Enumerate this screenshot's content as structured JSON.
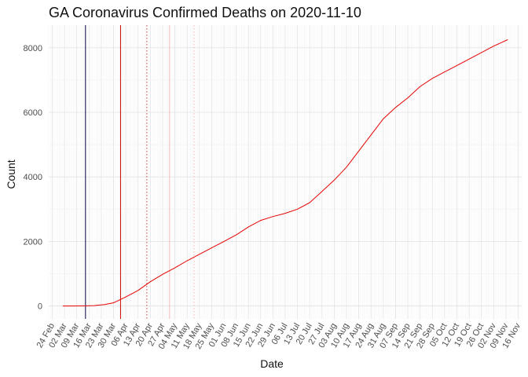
{
  "chart_data": {
    "type": "line",
    "title": "GA Coronavirus Confirmed Deaths on 2020-11-10",
    "xlabel": "Date",
    "ylabel": "Count",
    "xlim": [
      "2020-02-22",
      "2020-11-18"
    ],
    "ylim": [
      -400,
      8700
    ],
    "y_ticks": [
      0,
      2000,
      4000,
      6000,
      8000
    ],
    "x_ticks": [
      {
        "date": "2020-02-24",
        "label": "24 Feb"
      },
      {
        "date": "2020-03-02",
        "label": "02 Mar"
      },
      {
        "date": "2020-03-09",
        "label": "09 Mar"
      },
      {
        "date": "2020-03-16",
        "label": "16 Mar"
      },
      {
        "date": "2020-03-23",
        "label": "23 Mar"
      },
      {
        "date": "2020-03-30",
        "label": "30 Mar"
      },
      {
        "date": "2020-04-06",
        "label": "06 Apr"
      },
      {
        "date": "2020-04-13",
        "label": "13 Apr"
      },
      {
        "date": "2020-04-20",
        "label": "20 Apr"
      },
      {
        "date": "2020-04-27",
        "label": "27 Apr"
      },
      {
        "date": "2020-05-04",
        "label": "04 May"
      },
      {
        "date": "2020-05-11",
        "label": "11 May"
      },
      {
        "date": "2020-05-18",
        "label": "18 May"
      },
      {
        "date": "2020-05-25",
        "label": "25 May"
      },
      {
        "date": "2020-06-01",
        "label": "01 Jun"
      },
      {
        "date": "2020-06-08",
        "label": "08 Jun"
      },
      {
        "date": "2020-06-15",
        "label": "15 Jun"
      },
      {
        "date": "2020-06-22",
        "label": "22 Jun"
      },
      {
        "date": "2020-06-29",
        "label": "29 Jun"
      },
      {
        "date": "2020-07-06",
        "label": "06 Jul"
      },
      {
        "date": "2020-07-13",
        "label": "13 Jul"
      },
      {
        "date": "2020-07-20",
        "label": "20 Jul"
      },
      {
        "date": "2020-07-27",
        "label": "27 Jul"
      },
      {
        "date": "2020-08-03",
        "label": "03 Aug"
      },
      {
        "date": "2020-08-10",
        "label": "10 Aug"
      },
      {
        "date": "2020-08-17",
        "label": "17 Aug"
      },
      {
        "date": "2020-08-24",
        "label": "24 Aug"
      },
      {
        "date": "2020-08-31",
        "label": "31 Aug"
      },
      {
        "date": "2020-09-07",
        "label": "07 Sep"
      },
      {
        "date": "2020-09-14",
        "label": "14 Sep"
      },
      {
        "date": "2020-09-21",
        "label": "21 Sep"
      },
      {
        "date": "2020-09-28",
        "label": "28 Sep"
      },
      {
        "date": "2020-10-05",
        "label": "05 Oct"
      },
      {
        "date": "2020-10-12",
        "label": "12 Oct"
      },
      {
        "date": "2020-10-19",
        "label": "19 Oct"
      },
      {
        "date": "2020-10-26",
        "label": "26 Oct"
      },
      {
        "date": "2020-11-02",
        "label": "02 Nov"
      },
      {
        "date": "2020-11-09",
        "label": "09 Nov"
      },
      {
        "date": "2020-11-16",
        "label": "16 Nov"
      }
    ],
    "grid": true,
    "series": [
      {
        "color": "#e60000",
        "points": [
          {
            "x": "2020-03-01",
            "y": 0
          },
          {
            "x": "2020-03-12",
            "y": 1
          },
          {
            "x": "2020-03-19",
            "y": 10
          },
          {
            "x": "2020-03-25",
            "y": 45
          },
          {
            "x": "2020-03-30",
            "y": 100
          },
          {
            "x": "2020-04-01",
            "y": 150
          },
          {
            "x": "2020-04-06",
            "y": 280
          },
          {
            "x": "2020-04-13",
            "y": 480
          },
          {
            "x": "2020-04-20",
            "y": 750
          },
          {
            "x": "2020-04-27",
            "y": 980
          },
          {
            "x": "2020-05-04",
            "y": 1180
          },
          {
            "x": "2020-05-11",
            "y": 1400
          },
          {
            "x": "2020-05-18",
            "y": 1600
          },
          {
            "x": "2020-05-25",
            "y": 1800
          },
          {
            "x": "2020-06-01",
            "y": 2000
          },
          {
            "x": "2020-06-08",
            "y": 2200
          },
          {
            "x": "2020-06-15",
            "y": 2450
          },
          {
            "x": "2020-06-22",
            "y": 2650
          },
          {
            "x": "2020-06-29",
            "y": 2770
          },
          {
            "x": "2020-07-06",
            "y": 2870
          },
          {
            "x": "2020-07-13",
            "y": 3000
          },
          {
            "x": "2020-07-20",
            "y": 3200
          },
          {
            "x": "2020-07-27",
            "y": 3550
          },
          {
            "x": "2020-08-03",
            "y": 3900
          },
          {
            "x": "2020-08-10",
            "y": 4300
          },
          {
            "x": "2020-08-17",
            "y": 4800
          },
          {
            "x": "2020-08-24",
            "y": 5300
          },
          {
            "x": "2020-08-31",
            "y": 5800
          },
          {
            "x": "2020-09-07",
            "y": 6150
          },
          {
            "x": "2020-09-14",
            "y": 6450
          },
          {
            "x": "2020-09-21",
            "y": 6800
          },
          {
            "x": "2020-09-28",
            "y": 7050
          },
          {
            "x": "2020-10-05",
            "y": 7250
          },
          {
            "x": "2020-10-12",
            "y": 7450
          },
          {
            "x": "2020-10-19",
            "y": 7650
          },
          {
            "x": "2020-10-26",
            "y": 7850
          },
          {
            "x": "2020-11-02",
            "y": 8050
          },
          {
            "x": "2020-11-10",
            "y": 8250
          }
        ]
      }
    ],
    "vlines": [
      {
        "x": "2020-03-14",
        "color": "#000044",
        "style": "solid"
      },
      {
        "x": "2020-04-03",
        "color": "#cc0000",
        "style": "solid"
      },
      {
        "x": "2020-04-18",
        "color": "#cc4444",
        "style": "dotted"
      },
      {
        "x": "2020-05-01",
        "color": "#f5b5b5",
        "style": "solid"
      },
      {
        "x": "2020-05-15",
        "color": "#f5b5b5",
        "style": "dotted"
      }
    ]
  }
}
